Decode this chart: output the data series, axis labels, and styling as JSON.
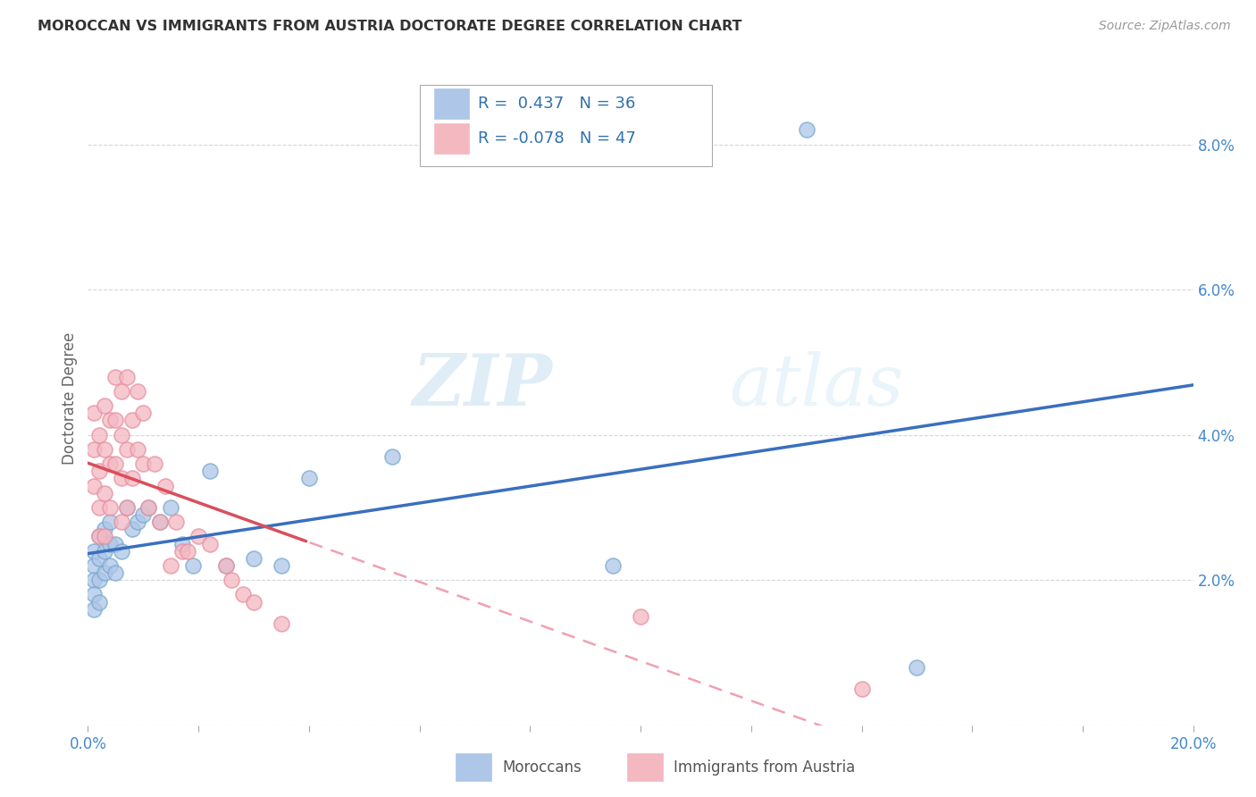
{
  "title": "MOROCCAN VS IMMIGRANTS FROM AUSTRIA DOCTORATE DEGREE CORRELATION CHART",
  "source": "Source: ZipAtlas.com",
  "ylabel_label": "Doctorate Degree",
  "xlim": [
    0.0,
    0.2
  ],
  "ylim": [
    0.0,
    0.09
  ],
  "xticks": [
    0.0,
    0.02,
    0.04,
    0.06,
    0.08,
    0.1,
    0.12,
    0.14,
    0.16,
    0.18,
    0.2
  ],
  "yticks": [
    0.0,
    0.02,
    0.04,
    0.06,
    0.08
  ],
  "ytick_labels": [
    "",
    "2.0%",
    "4.0%",
    "6.0%",
    "8.0%"
  ],
  "xtick_labels": [
    "0.0%",
    "",
    "",
    "",
    "",
    "",
    "",
    "",
    "",
    "",
    "20.0%"
  ],
  "moroccan_color": "#aec6e8",
  "morocco_edge_color": "#7aaad0",
  "austria_color": "#f4b8c1",
  "austria_edge_color": "#e890a0",
  "moroccan_line_color": "#3a6fbf",
  "austria_line_solid_color": "#d94f5c",
  "austria_line_dash_color": "#f0a0b0",
  "r_moroccan": 0.437,
  "n_moroccan": 36,
  "r_austria": -0.078,
  "n_austria": 47,
  "watermark": "ZIPatlas",
  "moroccan_x": [
    0.001,
    0.001,
    0.001,
    0.001,
    0.001,
    0.002,
    0.002,
    0.002,
    0.002,
    0.003,
    0.003,
    0.003,
    0.004,
    0.004,
    0.004,
    0.005,
    0.005,
    0.006,
    0.007,
    0.008,
    0.009,
    0.01,
    0.011,
    0.013,
    0.015,
    0.017,
    0.019,
    0.022,
    0.025,
    0.03,
    0.035,
    0.04,
    0.055,
    0.095,
    0.13,
    0.15
  ],
  "moroccan_y": [
    0.024,
    0.022,
    0.02,
    0.018,
    0.016,
    0.026,
    0.023,
    0.02,
    0.017,
    0.027,
    0.024,
    0.021,
    0.028,
    0.025,
    0.022,
    0.025,
    0.021,
    0.024,
    0.03,
    0.027,
    0.028,
    0.029,
    0.03,
    0.028,
    0.03,
    0.025,
    0.022,
    0.035,
    0.022,
    0.023,
    0.022,
    0.034,
    0.037,
    0.022,
    0.082,
    0.008
  ],
  "austria_x": [
    0.001,
    0.001,
    0.001,
    0.002,
    0.002,
    0.002,
    0.002,
    0.003,
    0.003,
    0.003,
    0.003,
    0.004,
    0.004,
    0.004,
    0.005,
    0.005,
    0.005,
    0.006,
    0.006,
    0.006,
    0.006,
    0.007,
    0.007,
    0.007,
    0.008,
    0.008,
    0.009,
    0.009,
    0.01,
    0.01,
    0.011,
    0.012,
    0.013,
    0.014,
    0.015,
    0.016,
    0.017,
    0.018,
    0.02,
    0.022,
    0.025,
    0.026,
    0.028,
    0.03,
    0.035,
    0.1,
    0.14
  ],
  "austria_y": [
    0.033,
    0.038,
    0.043,
    0.04,
    0.035,
    0.03,
    0.026,
    0.044,
    0.038,
    0.032,
    0.026,
    0.042,
    0.036,
    0.03,
    0.048,
    0.042,
    0.036,
    0.046,
    0.04,
    0.034,
    0.028,
    0.048,
    0.038,
    0.03,
    0.042,
    0.034,
    0.046,
    0.038,
    0.043,
    0.036,
    0.03,
    0.036,
    0.028,
    0.033,
    0.022,
    0.028,
    0.024,
    0.024,
    0.026,
    0.025,
    0.022,
    0.02,
    0.018,
    0.017,
    0.014,
    0.015,
    0.005
  ]
}
